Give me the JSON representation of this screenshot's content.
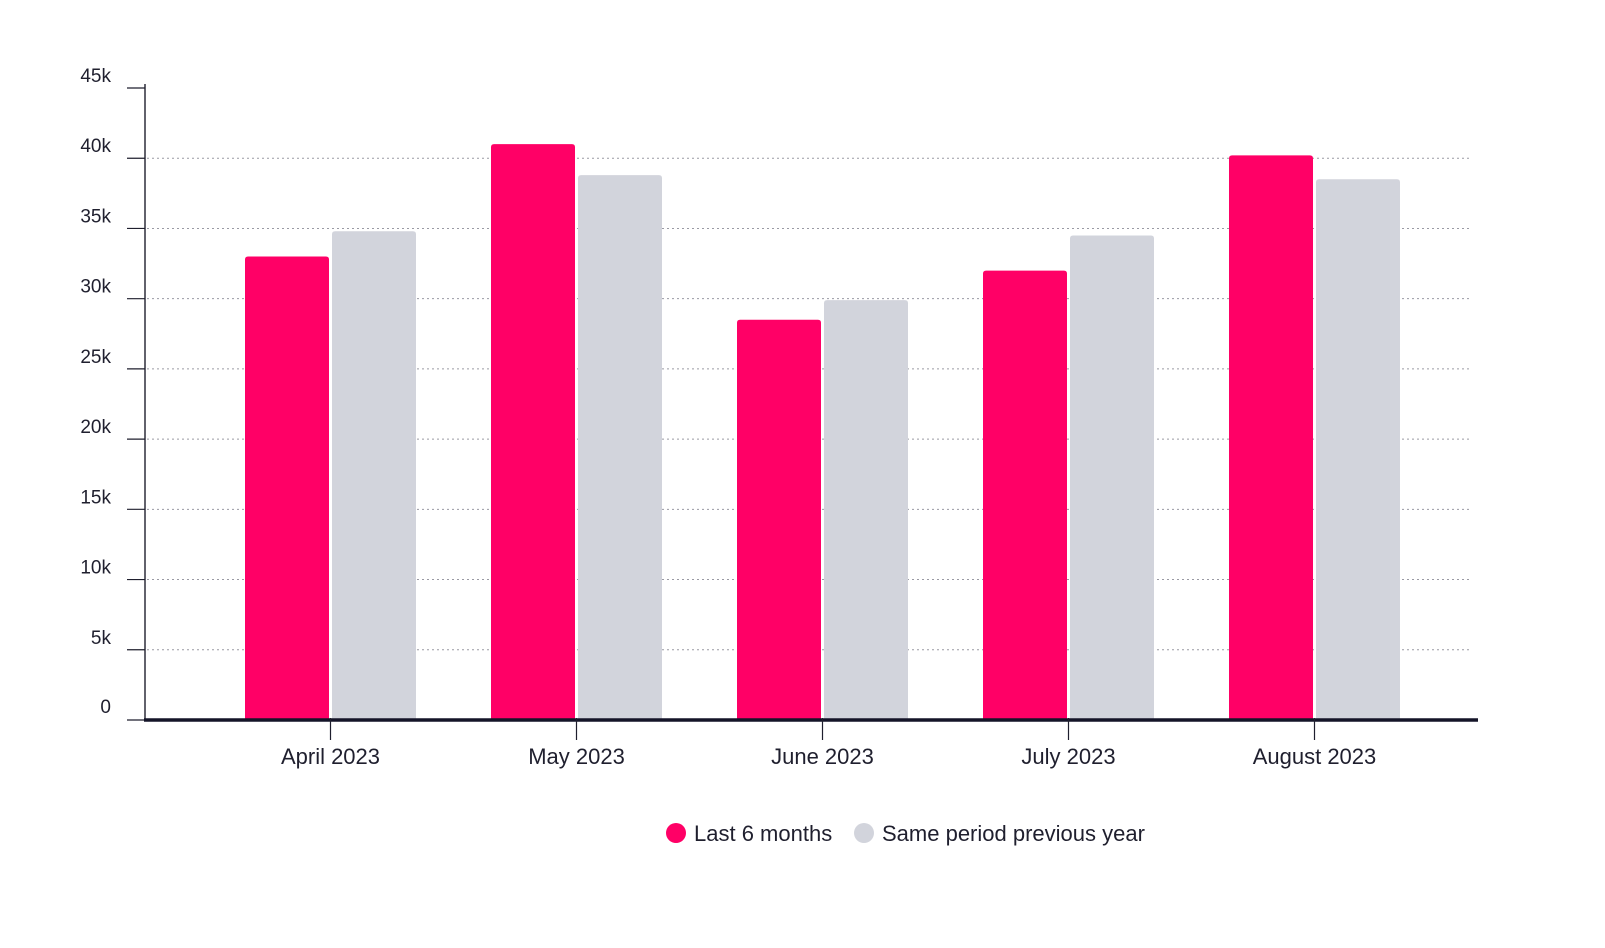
{
  "chart_data": {
    "type": "bar",
    "title": "",
    "xlabel": "",
    "ylabel": "",
    "categories": [
      "April 2023",
      "May 2023",
      "June 2023",
      "July 2023",
      "August 2023"
    ],
    "series": [
      {
        "name": "Last 6 months",
        "color": "#ff0066",
        "values": [
          33000,
          41000,
          28500,
          32000,
          40200
        ]
      },
      {
        "name": "Same period previous year",
        "color": "#d2d4dc",
        "values": [
          34800,
          38800,
          29900,
          34500,
          38500
        ]
      }
    ],
    "ylim": [
      0,
      45000
    ],
    "yticks": [
      0,
      5000,
      10000,
      15000,
      20000,
      25000,
      30000,
      35000,
      40000,
      45000
    ],
    "ytick_labels": [
      "0",
      "5k",
      "10k",
      "15k",
      "20k",
      "25k",
      "30k",
      "35k",
      "40k",
      "45k"
    ],
    "grid": true,
    "legend_position": "bottom-center"
  }
}
